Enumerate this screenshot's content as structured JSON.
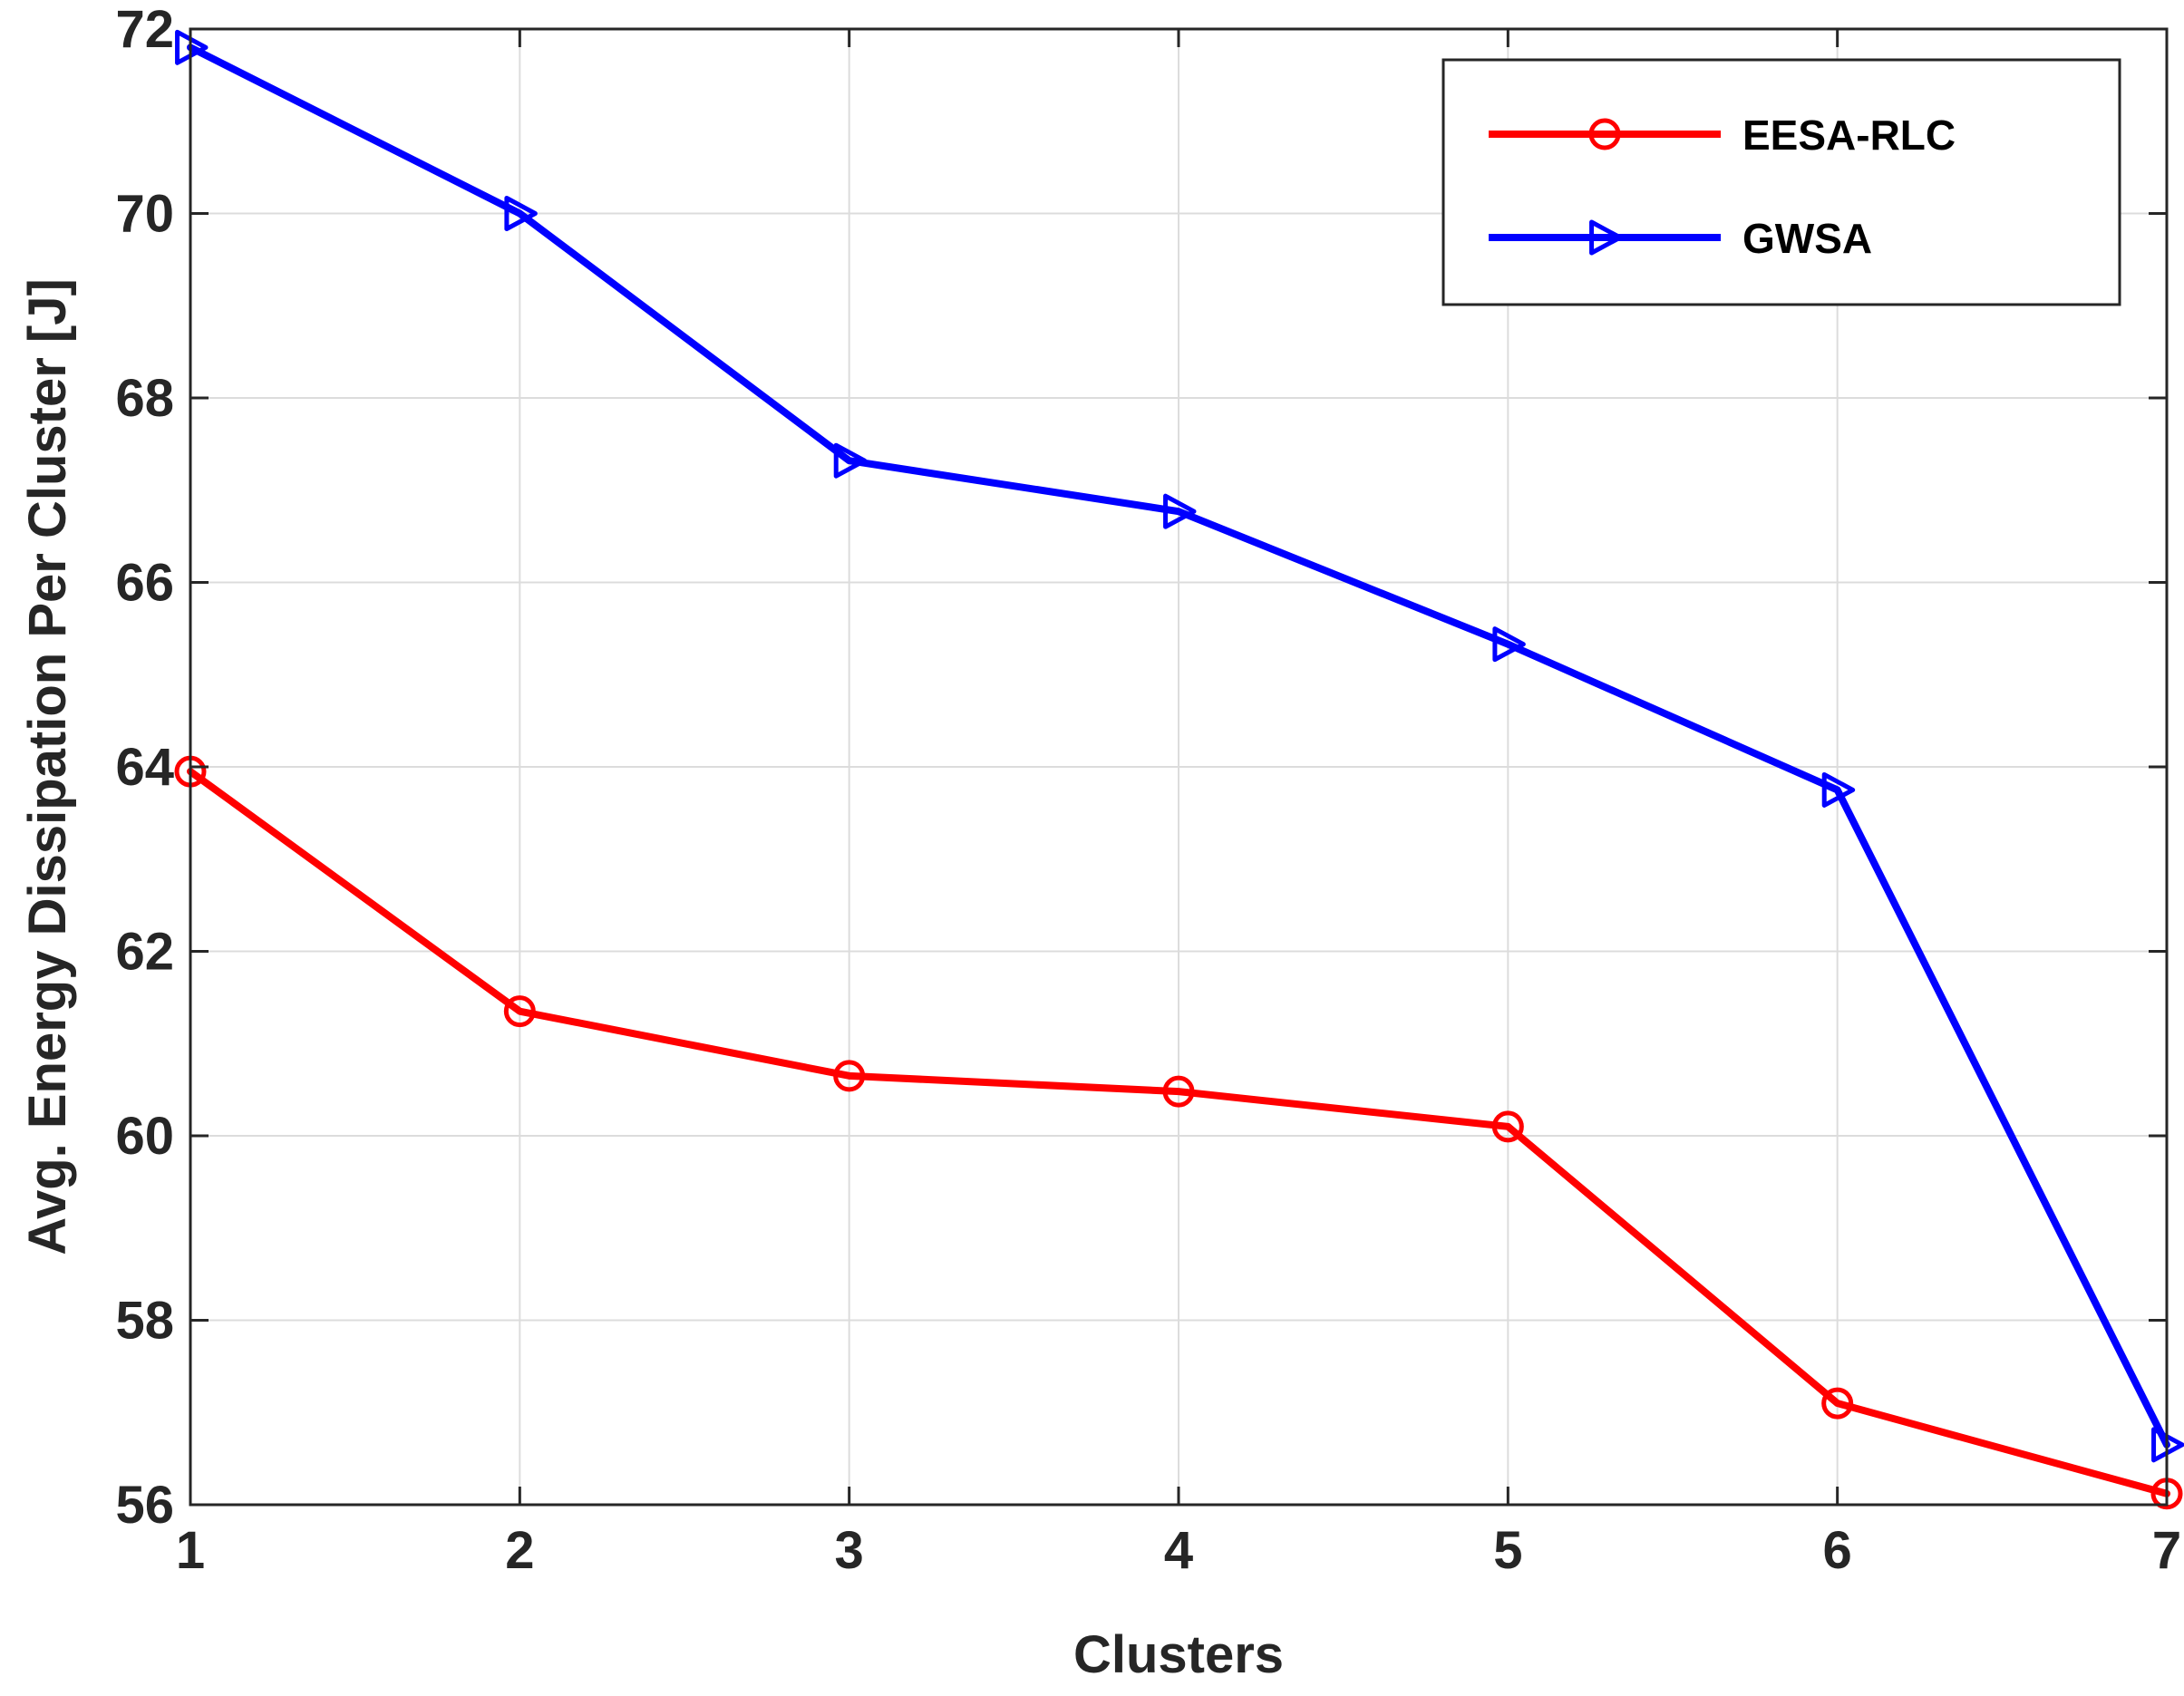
{
  "chart_data": {
    "type": "line",
    "x": [
      1,
      2,
      3,
      4,
      5,
      6,
      7
    ],
    "series": [
      {
        "name": "EESA-RLC",
        "values": [
          63.95,
          61.35,
          60.65,
          60.48,
          60.1,
          57.1,
          56.12
        ],
        "color": "#ff0000",
        "marker": "circle"
      },
      {
        "name": "GWSA",
        "values": [
          71.8,
          70.0,
          67.32,
          66.77,
          65.33,
          63.75,
          56.65
        ],
        "color": "#0000ff",
        "marker": "triangle-right"
      }
    ],
    "xlabel": "Clusters",
    "ylabel": "Avg. Energy Dissipation Per Cluster [J]",
    "xlim": [
      1,
      7
    ],
    "ylim": [
      56,
      72
    ],
    "xticks": [
      "1",
      "2",
      "3",
      "4",
      "5",
      "6",
      "7"
    ],
    "yticks": [
      "56",
      "58",
      "60",
      "62",
      "64",
      "66",
      "68",
      "70",
      "72"
    ],
    "grid": true,
    "legend_position": "top-right"
  }
}
